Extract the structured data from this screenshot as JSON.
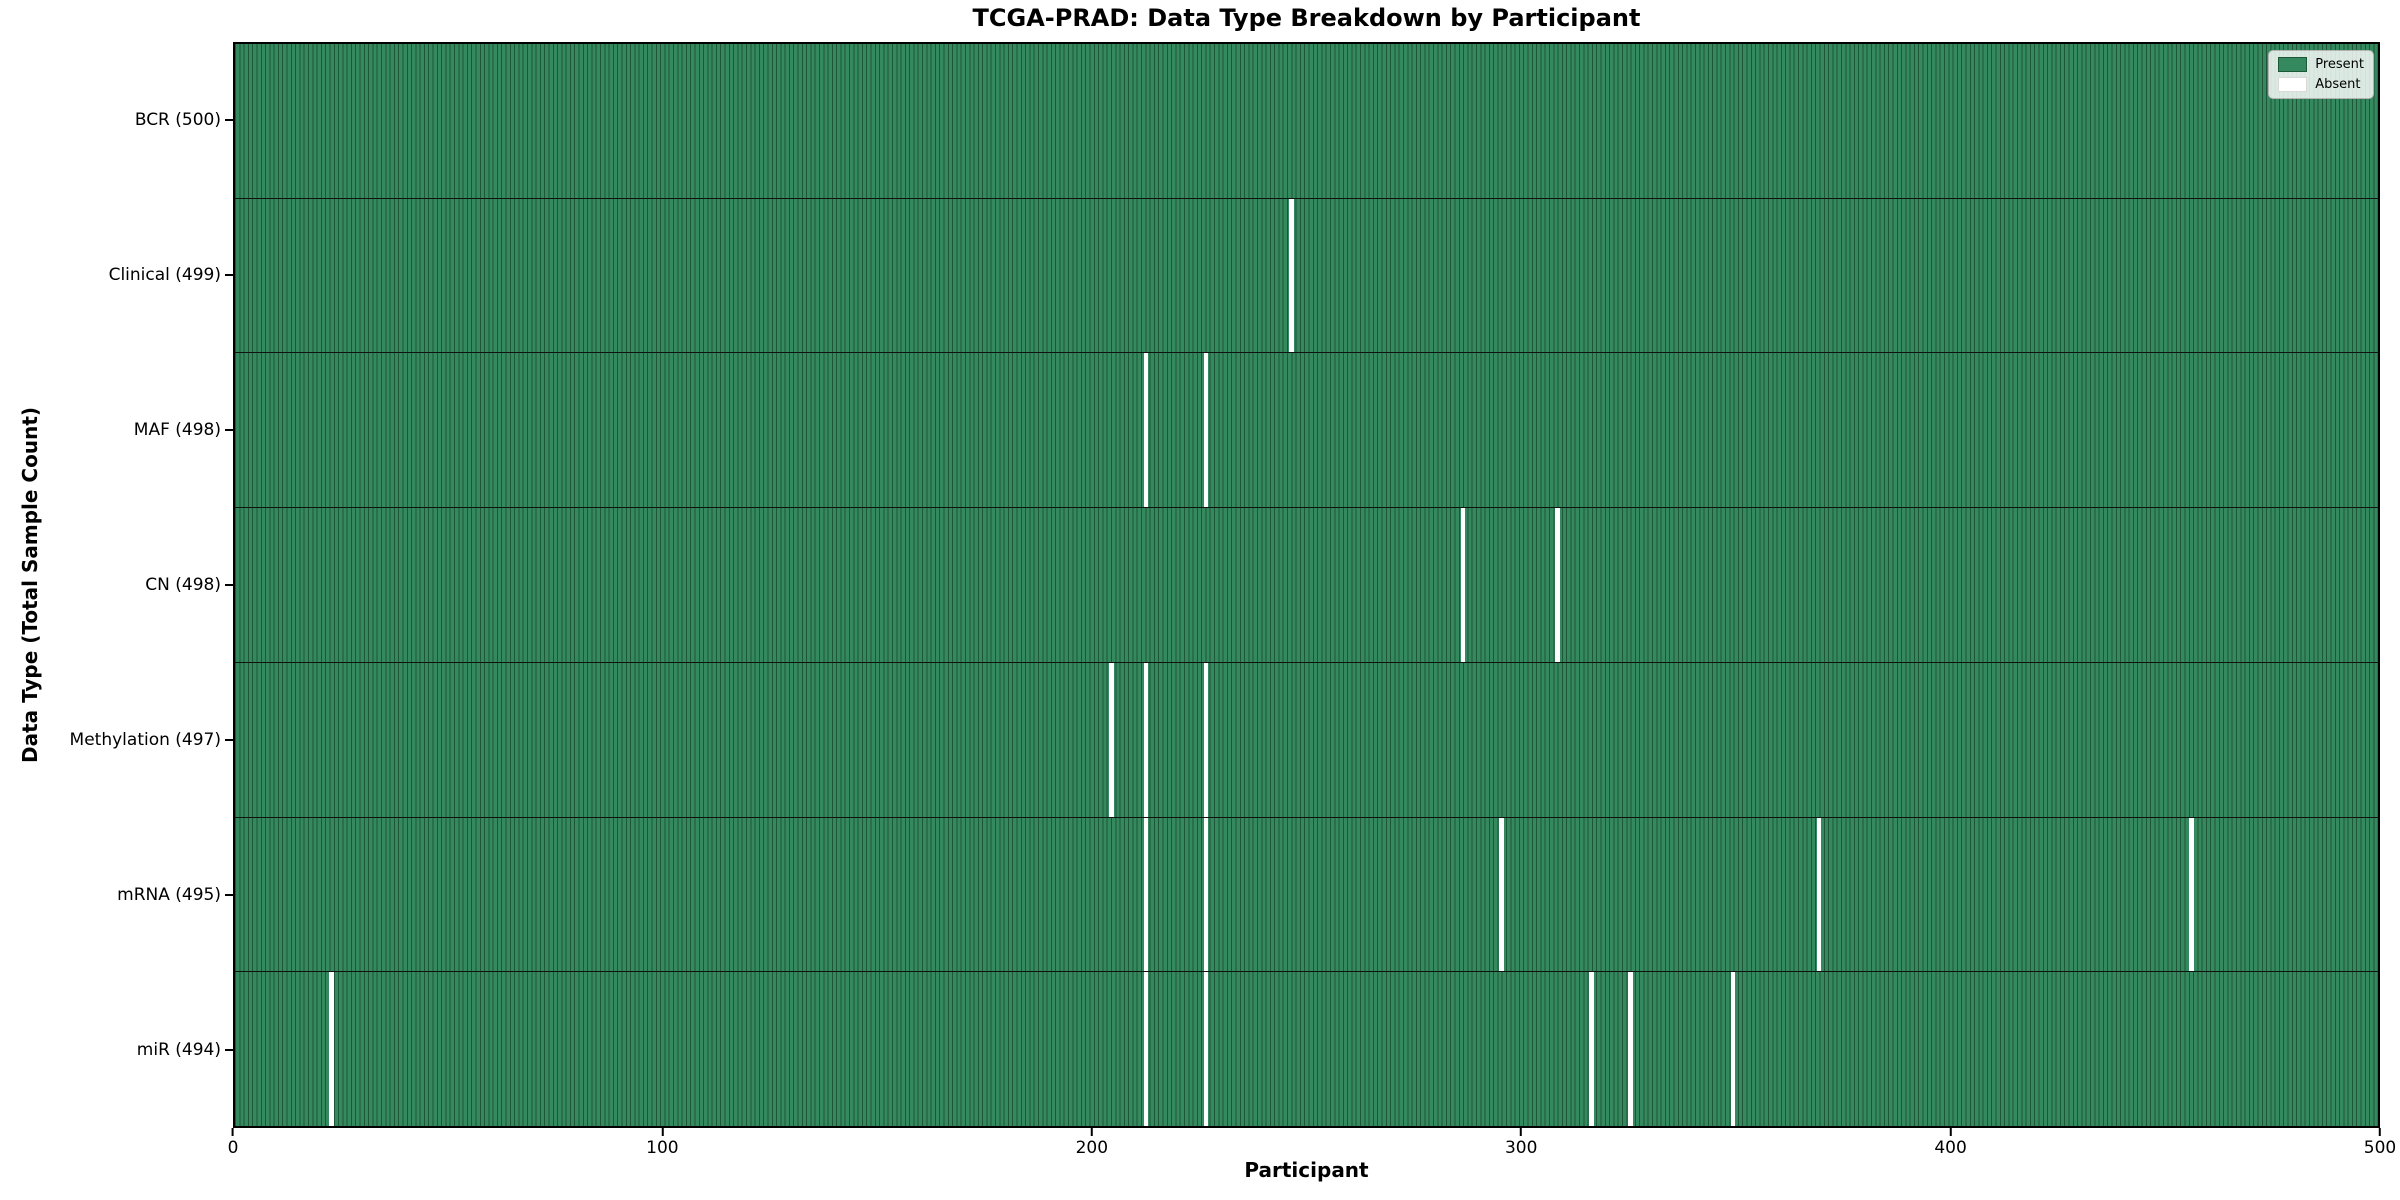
{
  "figure": {
    "title": "TCGA-PRAD: Data Type Breakdown by Participant",
    "xlabel": "Participant",
    "ylabel": "Data Type (Total Sample Count)"
  },
  "legend": {
    "present_label": "Present",
    "absent_label": "Absent"
  },
  "chart_data": {
    "type": "heatmap",
    "title": "TCGA-PRAD: Data Type Breakdown by Participant",
    "xlabel": "Participant",
    "ylabel": "Data Type (Total Sample Count)",
    "x_range": [
      0,
      500
    ],
    "x_ticks": [
      0,
      100,
      200,
      300,
      400,
      500
    ],
    "n_participants": 500,
    "grid": false,
    "legend_position": "upper right",
    "legend_entries": [
      {
        "label": "Present",
        "color": "#35895e"
      },
      {
        "label": "Absent",
        "color": "#ffffff"
      }
    ],
    "colors": {
      "present_fill": "#35895e",
      "cell_edge": "#1d5737",
      "absent_fill": "#ffffff",
      "row_separator": "#10130f"
    },
    "rows": [
      {
        "label": "BCR (500)",
        "data_type": "BCR",
        "total_count": 500,
        "absent_participants": []
      },
      {
        "label": "Clinical (499)",
        "data_type": "Clinical",
        "total_count": 499,
        "absent_participants": [
          246
        ]
      },
      {
        "label": "MAF (498)",
        "data_type": "MAF",
        "total_count": 498,
        "absent_participants": [
          212,
          226
        ]
      },
      {
        "label": "CN (498)",
        "data_type": "CN",
        "total_count": 498,
        "absent_participants": [
          286,
          308
        ]
      },
      {
        "label": "Methylation (497)",
        "data_type": "Methylation",
        "total_count": 497,
        "absent_participants": [
          204,
          212,
          226
        ]
      },
      {
        "label": "mRNA (495)",
        "data_type": "mRNA",
        "total_count": 495,
        "absent_participants": [
          212,
          226,
          295,
          369,
          456
        ]
      },
      {
        "label": "miR (494)",
        "data_type": "miR",
        "total_count": 494,
        "absent_participants": [
          22,
          212,
          226,
          316,
          325,
          349
        ]
      }
    ]
  }
}
